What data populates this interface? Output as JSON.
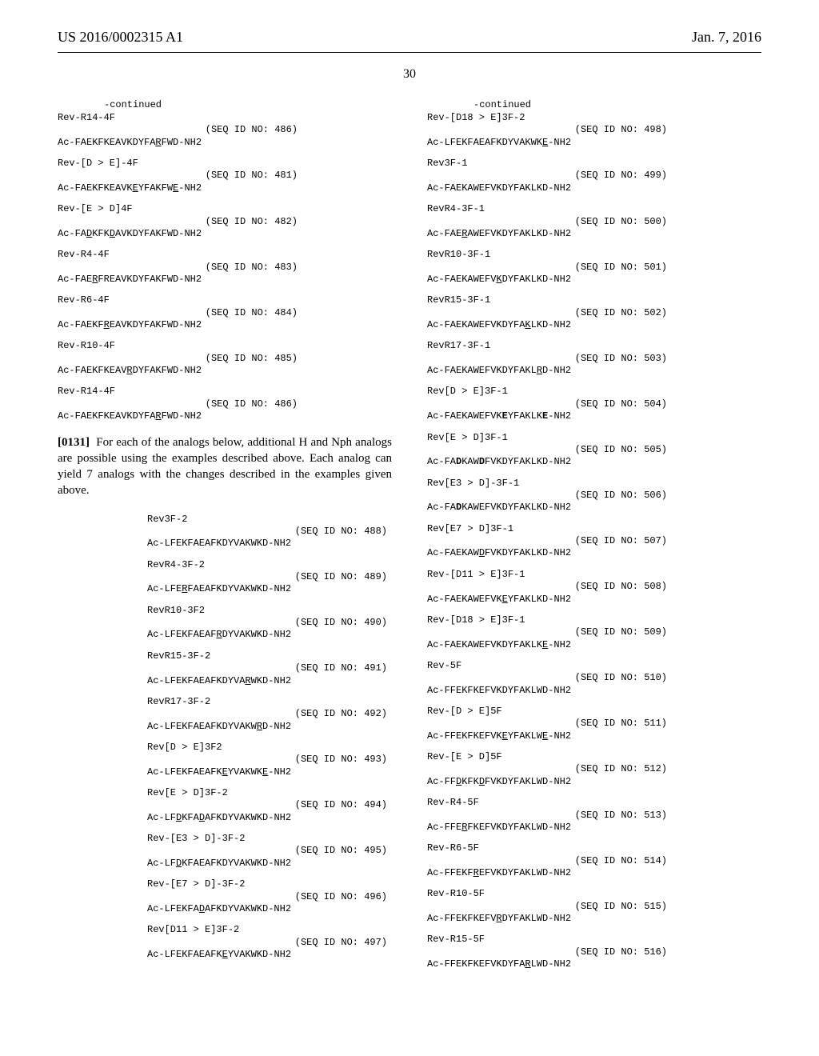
{
  "header": {
    "left": "US 2016/0002315 A1",
    "right": "Jan. 7, 2016"
  },
  "pagenum": "30",
  "continued_label": "-continued",
  "paragraph": {
    "num": "[0131]",
    "text": "For each of the analogs below, additional H and Nph analogs are possible using the examples described above. Each analog can yield 7 analogs with the changes described in the examples given above."
  },
  "left_top": [
    {
      "name": "Rev-R14-4F",
      "seqid": "(SEQ ID NO: 486)",
      "seq_html": "Ac-FAEKFKEAVKDYFA<u>R</u>FWD-NH2"
    },
    {
      "name": "Rev-[D > E]-4F",
      "seqid": "(SEQ ID NO: 481)",
      "seq_html": "Ac-FAEKFKEAVK<u>E</u>YFAKFW<u>E</u>-NH2"
    },
    {
      "name": "Rev-[E > D]4F",
      "seqid": "(SEQ ID NO: 482)",
      "seq_html": "Ac-FA<u>D</u>KFK<u>D</u>AVKDYFAKFWD-NH2"
    },
    {
      "name": "Rev-R4-4F",
      "seqid": "(SEQ ID NO: 483)",
      "seq_html": "Ac-FAE<u>R</u>FREAVKDYFAKFWD-NH2"
    },
    {
      "name": "Rev-R6-4F",
      "seqid": "(SEQ ID NO: 484)",
      "seq_html": "Ac-FAEKF<u>R</u>EAVKDYFAKFWD-NH2"
    },
    {
      "name": "Rev-R10-4F",
      "seqid": "(SEQ ID NO: 485)",
      "seq_html": "Ac-FAEKFKEAV<u>R</u>DYFAKFWD-NH2"
    },
    {
      "name": "Rev-R14-4F",
      "seqid": "(SEQ ID NO: 486)",
      "seq_html": "Ac-FAEKFKEAVKDYFA<u>R</u>FWD-NH2"
    }
  ],
  "left_bottom": [
    {
      "name": "Rev3F-2",
      "seqid": "(SEQ ID NO: 488)",
      "seq_html": "Ac-LFEKFAEAFKDYVAKWKD-NH2"
    },
    {
      "name": "RevR4-3F-2",
      "seqid": "(SEQ ID NO: 489)",
      "seq_html": "Ac-LFE<u>R</u>FAEAFKDYVAKWKD-NH2"
    },
    {
      "name": "RevR10-3F2",
      "seqid": "(SEQ ID NO: 490)",
      "seq_html": "Ac-LFEKFAEAF<u>R</u>DYVAKWKD-NH2"
    },
    {
      "name": "RevR15-3F-2",
      "seqid": "(SEQ ID NO: 491)",
      "seq_html": "Ac-LFEKFAEAFKDYVA<u>R</u>WKD-NH2"
    },
    {
      "name": "RevR17-3F-2",
      "seqid": "(SEQ ID NO: 492)",
      "seq_html": "Ac-LFEKFAEAFKDYVAKW<u>R</u>D-NH2"
    },
    {
      "name": "Rev[D > E]3F2",
      "seqid": "(SEQ ID NO: 493)",
      "seq_html": "Ac-LFEKFAEAFK<u>E</u>YVAKWK<u>E</u>-NH2"
    },
    {
      "name": "Rev[E > D]3F-2",
      "seqid": "(SEQ ID NO: 494)",
      "seq_html": "Ac-LF<u>D</u>KFA<u>D</u>AFKDYVAKWKD-NH2"
    },
    {
      "name": "Rev-[E3 > D]-3F-2",
      "seqid": "(SEQ ID NO: 495)",
      "seq_html": "Ac-LF<u>D</u>KFAEAFKDYVAKWKD-NH2"
    },
    {
      "name": "Rev-[E7 > D]-3F-2",
      "seqid": "(SEQ ID NO: 496)",
      "seq_html": "Ac-LFEKFA<u>D</u>AFKDYVAKWKD-NH2"
    },
    {
      "name": "Rev[D11 > E]3F-2",
      "seqid": "(SEQ ID NO: 497)",
      "seq_html": "Ac-LFEKFAEAFK<u>E</u>YVAKWKD-NH2"
    }
  ],
  "right": [
    {
      "name": "Rev-[D18 > E]3F-2",
      "seqid": "(SEQ ID NO: 498)",
      "seq_html": "Ac-LFEKFAEAFKDYVAKWK<u>E</u>-NH2"
    },
    {
      "name": "Rev3F-1",
      "seqid": "(SEQ ID NO: 499)",
      "seq_html": "Ac-FAEKAWEFVKDYFAKLKD-NH2"
    },
    {
      "name": "RevR4-3F-1",
      "seqid": "(SEQ ID NO: 500)",
      "seq_html": "Ac-FAE<u>R</u>AWEFVKDYFAKLKD-NH2"
    },
    {
      "name": "RevR10-3F-1",
      "seqid": "(SEQ ID NO: 501)",
      "seq_html": "Ac-FAEKAWEFV<u>K</u>DYFAKLKD-NH2"
    },
    {
      "name": "RevR15-3F-1",
      "seqid": "(SEQ ID NO: 502)",
      "seq_html": "Ac-FAEKAWEFVKDYFA<u>K</u>LKD-NH2"
    },
    {
      "name": "RevR17-3F-1",
      "seqid": "(SEQ ID NO: 503)",
      "seq_html": "Ac-FAEKAWEFVKDYFAKL<u>R</u>D-NH2"
    },
    {
      "name": "Rev[D > E]3F-1",
      "seqid": "(SEQ ID NO: 504)",
      "seq_html": "Ac-FAEKAWEFVK<b>E</b>YFAKLK<b>E</b>-NH2"
    },
    {
      "name": "Rev[E > D]3F-1",
      "seqid": "(SEQ ID NO: 505)",
      "seq_html": "Ac-FA<b>D</b>KAW<b>D</b>FVKDYFAKLKD-NH2"
    },
    {
      "name": "Rev[E3 > D]-3F-1",
      "seqid": "(SEQ ID NO: 506)",
      "seq_html": "Ac-FA<b>D</b>KAWEFVKDYFAKLKD-NH2"
    },
    {
      "name": "Rev[E7 > D]3F-1",
      "seqid": "(SEQ ID NO: 507)",
      "seq_html": "Ac-FAEKAW<u>D</u>FVKDYFAKLKD-NH2"
    },
    {
      "name": "Rev-[D11 > E]3F-1",
      "seqid": "(SEQ ID NO: 508)",
      "seq_html": "Ac-FAEKAWEFVK<u>E</u>YFAKLKD-NH2"
    },
    {
      "name": "Rev-[D18 > E]3F-1",
      "seqid": "(SEQ ID NO: 509)",
      "seq_html": "Ac-FAEKAWEFVKDYFAKLK<u>E</u>-NH2"
    },
    {
      "name": "Rev-5F",
      "seqid": "(SEQ ID NO: 510)",
      "seq_html": "Ac-FFEKFKEFVKDYFAKLWD-NH2"
    },
    {
      "name": "Rev-[D > E]5F",
      "seqid": "(SEQ ID NO: 511)",
      "seq_html": "Ac-FFEKFKEFVK<u>E</u>YFAKLW<u>E</u>-NH2"
    },
    {
      "name": "Rev-[E > D]5F",
      "seqid": "(SEQ ID NO: 512)",
      "seq_html": "Ac-FF<u>D</u>KFK<u>D</u>FVKDYFAKLWD-NH2"
    },
    {
      "name": "Rev-R4-5F",
      "seqid": "(SEQ ID NO: 513)",
      "seq_html": "Ac-FFE<u>R</u>FKEFVKDYFAKLWD-NH2"
    },
    {
      "name": "Rev-R6-5F",
      "seqid": "(SEQ ID NO: 514)",
      "seq_html": "Ac-FFEKF<u>R</u>EFVKDYFAKLWD-NH2"
    },
    {
      "name": "Rev-R10-5F",
      "seqid": "(SEQ ID NO: 515)",
      "seq_html": "Ac-FFEKFKEFV<u>R</u>DYFAKLWD-NH2"
    },
    {
      "name": "Rev-R15-5F",
      "seqid": "(SEQ ID NO: 516)",
      "seq_html": "Ac-FFEKFKEFVKDYFA<u>R</u>LWD-NH2"
    }
  ]
}
